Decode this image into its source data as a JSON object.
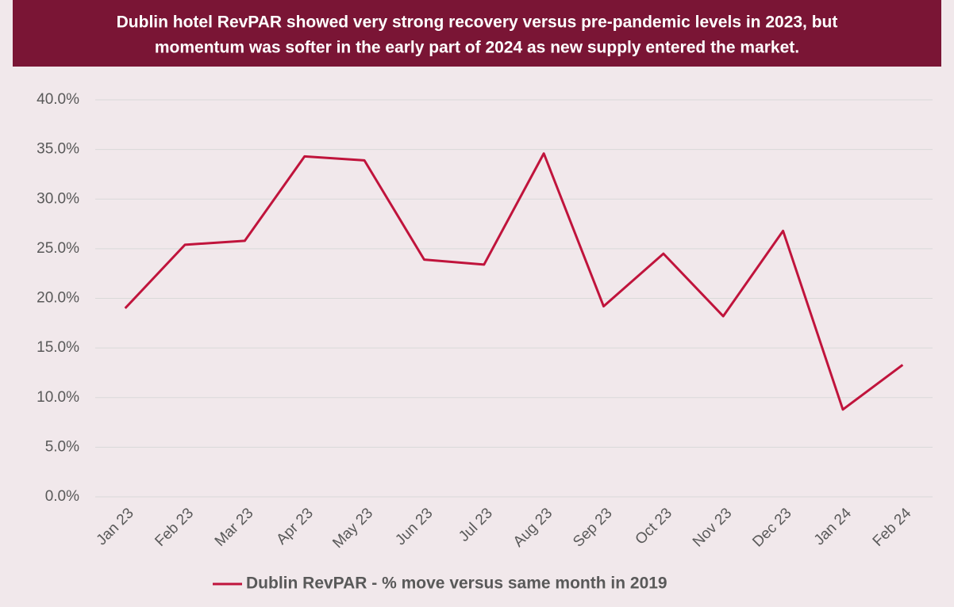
{
  "chart_data": {
    "type": "line",
    "title": [
      "Dublin hotel RevPAR showed very strong recovery versus pre-pandemic levels in 2023, but",
      "momentum was softer in the early part of 2024 as new supply entered the market."
    ],
    "categories": [
      "Jan 23",
      "Feb 23",
      "Mar 23",
      "Apr 23",
      "May 23",
      "Jun 23",
      "Jul 23",
      "Aug 23",
      "Sep 23",
      "Oct 23",
      "Nov 23",
      "Dec 23",
      "Jan 24",
      "Feb 24"
    ],
    "series": [
      {
        "name": "Dublin RevPAR - % move versus same month in 2019",
        "color": "#c0143c",
        "values": [
          19.0,
          25.4,
          25.8,
          34.3,
          33.9,
          23.9,
          23.4,
          34.6,
          19.2,
          24.5,
          18.2,
          26.8,
          8.8,
          13.3
        ]
      }
    ],
    "ylim": [
      0,
      40
    ],
    "yticks": [
      {
        "value": 0,
        "label": "0.0%"
      },
      {
        "value": 5,
        "label": "5.0%"
      },
      {
        "value": 10,
        "label": "10.0%"
      },
      {
        "value": 15,
        "label": "15.0%"
      },
      {
        "value": 20,
        "label": "20.0%"
      },
      {
        "value": 25,
        "label": "25.0%"
      },
      {
        "value": 30,
        "label": "30.0%"
      },
      {
        "value": 35,
        "label": "35.0%"
      },
      {
        "value": 40,
        "label": "40.0%"
      }
    ],
    "grid": true,
    "legend": "bottom"
  }
}
